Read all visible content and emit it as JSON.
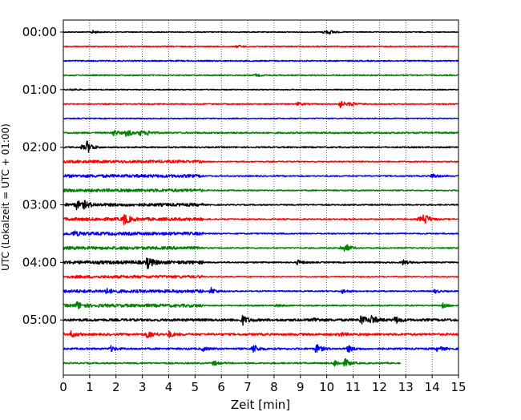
{
  "chart_data": {
    "type": "line",
    "xlabel": "Zeit  [min]",
    "ylabel": "UTC (Lokalzeit = UTC + 01:00)",
    "xlim": [
      0,
      15
    ],
    "x_ticks": [
      "0",
      "1",
      "2",
      "3",
      "4",
      "5",
      "6",
      "7",
      "8",
      "9",
      "10",
      "11",
      "12",
      "13",
      "14",
      "15"
    ],
    "y_ticks": [
      {
        "label": "00:00",
        "row": 0
      },
      {
        "label": "01:00",
        "row": 4
      },
      {
        "label": "02:00",
        "row": 8
      },
      {
        "label": "03:00",
        "row": 12
      },
      {
        "label": "04:00",
        "row": 16
      },
      {
        "label": "05:00",
        "row": 20
      }
    ],
    "row_interval_min": 15,
    "grid": "vertical-dotted",
    "colors": [
      "#000000",
      "#ff0000",
      "#0000ff",
      "#008000"
    ],
    "traces": [
      {
        "row": 0,
        "color": "#000000",
        "noise": 0.35,
        "loud_until": null,
        "events": [
          [
            1.1,
            1.2
          ],
          [
            9.9,
            1.5
          ],
          [
            10.1,
            1.1
          ]
        ]
      },
      {
        "row": 1,
        "color": "#ff0000",
        "noise": 0.4,
        "loud_until": null,
        "events": [
          [
            6.6,
            0.9
          ]
        ]
      },
      {
        "row": 2,
        "color": "#0000ff",
        "noise": 0.45,
        "loud_until": null,
        "events": []
      },
      {
        "row": 3,
        "color": "#008000",
        "noise": 0.45,
        "loud_until": null,
        "events": [
          [
            7.3,
            0.8
          ]
        ]
      },
      {
        "row": 4,
        "color": "#000000",
        "noise": 0.35,
        "loud_until": null,
        "events": [
          [
            0.3,
            0.9
          ]
        ]
      },
      {
        "row": 5,
        "color": "#ff0000",
        "noise": 0.4,
        "loud_until": null,
        "events": [
          [
            8.9,
            1.3
          ],
          [
            10.5,
            2.8
          ],
          [
            10.9,
            1.6
          ]
        ]
      },
      {
        "row": 6,
        "color": "#0000ff",
        "noise": 0.35,
        "loud_until": null,
        "events": []
      },
      {
        "row": 7,
        "color": "#008000",
        "noise": 0.6,
        "loud_until": null,
        "events": [
          [
            1.9,
            2.2
          ],
          [
            2.4,
            3.0
          ],
          [
            2.9,
            2.0
          ],
          [
            3.2,
            1.2
          ]
        ]
      },
      {
        "row": 8,
        "color": "#000000",
        "noise": 0.5,
        "loud_until": null,
        "events": [
          [
            0.7,
            1.5
          ],
          [
            0.9,
            4.5
          ]
        ]
      },
      {
        "row": 9,
        "color": "#ff0000",
        "noise": 0.4,
        "loud_until": 5.3,
        "events": []
      },
      {
        "row": 10,
        "color": "#0000ff",
        "noise": 0.45,
        "loud_until": 5.3,
        "events": [
          [
            14.0,
            2.0
          ]
        ]
      },
      {
        "row": 11,
        "color": "#008000",
        "noise": 0.45,
        "loud_until": 5.3,
        "events": []
      },
      {
        "row": 12,
        "color": "#000000",
        "noise": 0.45,
        "loud_until": 5.3,
        "events": [
          [
            0.5,
            3.0
          ],
          [
            0.8,
            2.0
          ]
        ]
      },
      {
        "row": 13,
        "color": "#ff0000",
        "noise": 0.45,
        "loud_until": 5.3,
        "events": [
          [
            2.3,
            4.0
          ],
          [
            13.7,
            4.2
          ],
          [
            13.5,
            2.0
          ]
        ]
      },
      {
        "row": 14,
        "color": "#0000ff",
        "noise": 0.45,
        "loud_until": 5.3,
        "events": [
          [
            0.4,
            1.4
          ]
        ]
      },
      {
        "row": 15,
        "color": "#008000",
        "noise": 0.45,
        "loud_until": 5.3,
        "events": [
          [
            10.7,
            3.0
          ],
          [
            10.5,
            1.4
          ]
        ]
      },
      {
        "row": 16,
        "color": "#000000",
        "noise": 0.5,
        "loud_until": 5.3,
        "events": [
          [
            3.2,
            4.0
          ],
          [
            8.9,
            1.8
          ],
          [
            12.9,
            2.0
          ]
        ]
      },
      {
        "row": 17,
        "color": "#ff0000",
        "noise": 0.4,
        "loud_until": 5.3,
        "events": []
      },
      {
        "row": 18,
        "color": "#0000ff",
        "noise": 0.45,
        "loud_until": 5.3,
        "events": [
          [
            1.6,
            1.6
          ],
          [
            5.6,
            2.8
          ],
          [
            10.6,
            1.5
          ],
          [
            14.1,
            1.4
          ]
        ]
      },
      {
        "row": 19,
        "color": "#008000",
        "noise": 0.45,
        "loud_until": 5.3,
        "events": [
          [
            0.5,
            2.8
          ],
          [
            8.1,
            1.2
          ],
          [
            14.4,
            1.7
          ]
        ]
      },
      {
        "row": 20,
        "color": "#000000",
        "noise": 0.95,
        "loud_until": null,
        "events": [
          [
            6.8,
            3.5
          ],
          [
            11.3,
            3.5
          ],
          [
            11.7,
            3.0
          ],
          [
            12.6,
            2.5
          ],
          [
            9.5,
            1.5
          ]
        ]
      },
      {
        "row": 21,
        "color": "#ff0000",
        "noise": 0.8,
        "loud_until": null,
        "events": [
          [
            0.3,
            2.2
          ],
          [
            3.2,
            3.0
          ],
          [
            4.0,
            2.2
          ],
          [
            10.5,
            1.4
          ]
        ]
      },
      {
        "row": 22,
        "color": "#0000ff",
        "noise": 0.7,
        "loud_until": null,
        "events": [
          [
            1.8,
            2.0
          ],
          [
            7.2,
            3.5
          ],
          [
            9.6,
            3.5
          ],
          [
            10.8,
            2.5
          ],
          [
            14.2,
            2.0
          ],
          [
            5.3,
            1.4
          ]
        ]
      },
      {
        "row": 23,
        "color": "#008000",
        "noise": 0.55,
        "loud_until": null,
        "end": 12.8,
        "events": [
          [
            5.7,
            1.8
          ],
          [
            10.3,
            2.5
          ],
          [
            10.7,
            3.0
          ]
        ]
      }
    ]
  }
}
